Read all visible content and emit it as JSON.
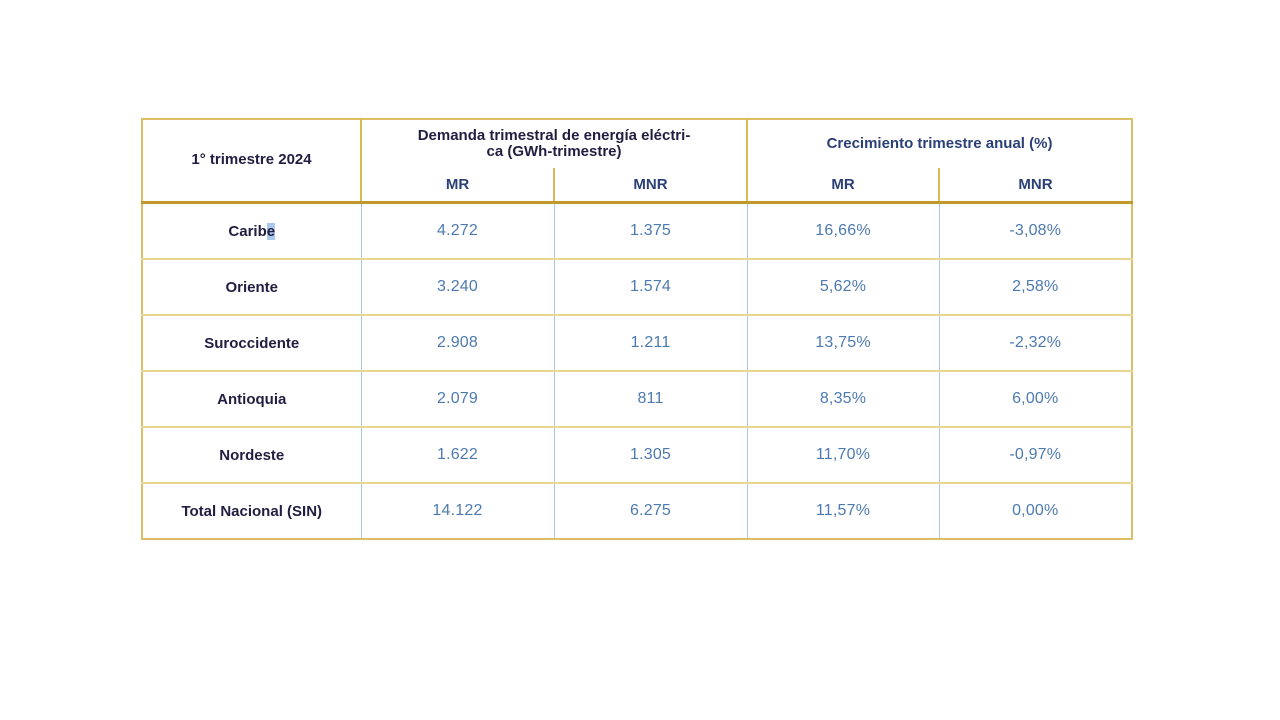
{
  "colors": {
    "header_dark_navy": "#211e42",
    "header_blue": "#2a4076",
    "data_blue": "#4d7ab0",
    "border_gold_outer": "#ddbe66",
    "border_gold_thick": "#c1992a",
    "border_gold_header": "#d9ba55",
    "border_gold_row": "#e9d693",
    "border_blue_column": "#aec5e3",
    "selection_highlight": "#a9c9ef"
  },
  "chart_data": {
    "type": "table",
    "corner_header": "1° trimestre 2024",
    "column_groups": [
      {
        "label": "Demanda trimestral de energía eléctri-\nca (GWh-trimestre)",
        "columns": [
          "MR",
          "MNR"
        ]
      },
      {
        "label": "Crecimiento trimestre anual (%)",
        "columns": [
          "MR",
          "MNR"
        ]
      }
    ],
    "rows": [
      {
        "label": "Caribe",
        "values": [
          "4.272",
          "1.375",
          "16,66%",
          "-3,08%"
        ]
      },
      {
        "label": "Oriente",
        "values": [
          "3.240",
          "1.574",
          "5,62%",
          "2,58%"
        ]
      },
      {
        "label": "Suroccidente",
        "values": [
          "2.908",
          "1.211",
          "13,75%",
          "-2,32%"
        ]
      },
      {
        "label": "Antioquia",
        "values": [
          "2.079",
          "811",
          "8,35%",
          "6,00%"
        ]
      },
      {
        "label": "Nordeste",
        "values": [
          "1.622",
          "1.305",
          "11,70%",
          "-0,97%"
        ]
      },
      {
        "label": "Total Nacional (SIN)",
        "values": [
          "14.122",
          "6.275",
          "11,57%",
          "0,00%"
        ]
      }
    ]
  }
}
